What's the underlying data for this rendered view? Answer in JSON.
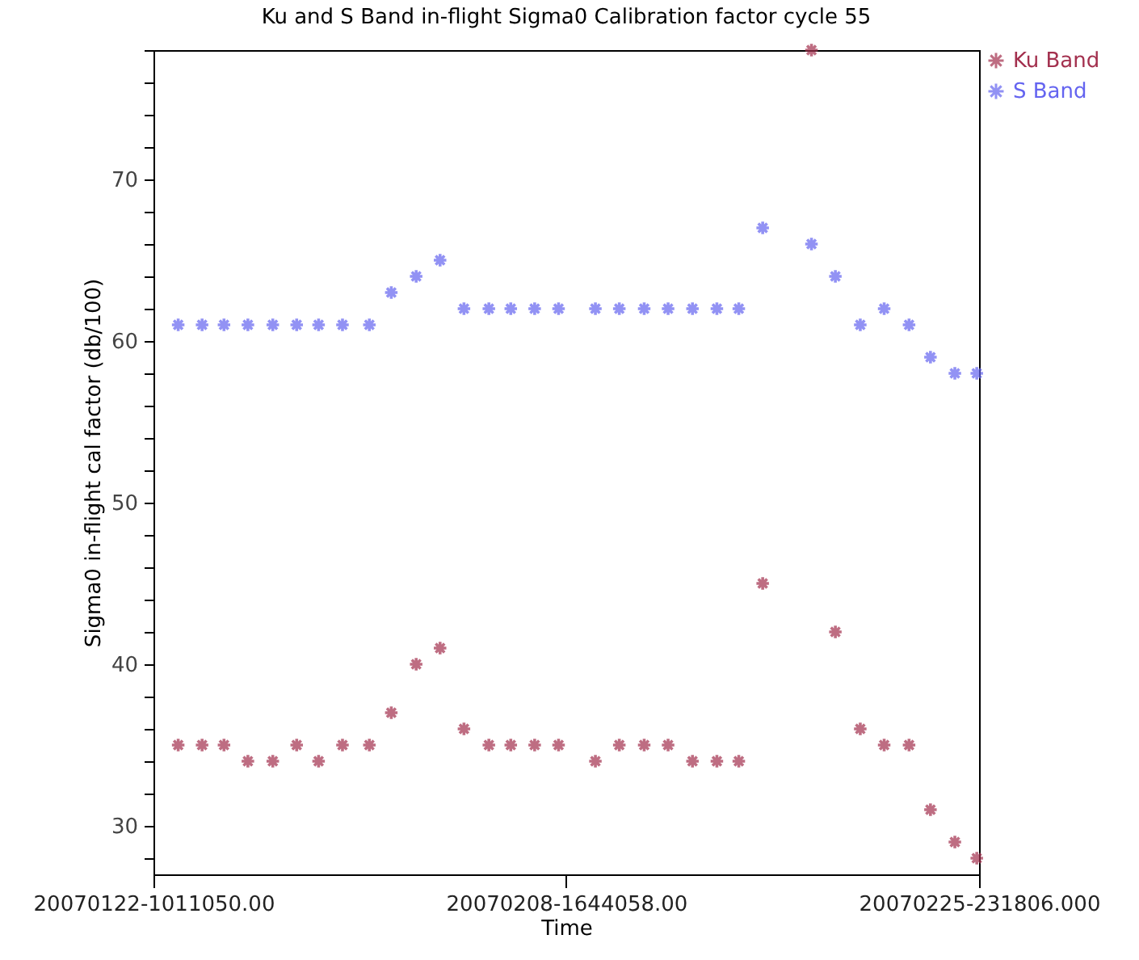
{
  "chart_data": {
    "type": "scatter",
    "title": "Ku and S Band in-flight Sigma0 Calibration factor cycle 55",
    "xlabel": "Time",
    "ylabel": "Sigma0 in-flight cal factor (db/100)",
    "x": [
      "2007-01-23T11:00",
      "2007-01-24T11:00",
      "2007-01-25T09:00",
      "2007-01-26T09:00",
      "2007-01-27T10:00",
      "2007-01-28T10:00",
      "2007-01-29T08:00",
      "2007-01-30T08:00",
      "2007-01-31T11:00",
      "2007-02-01T09:00",
      "2007-02-02T10:00",
      "2007-02-03T10:00",
      "2007-02-04T10:00",
      "2007-02-05T11:00",
      "2007-02-06T09:00",
      "2007-02-07T09:00",
      "2007-02-08T09:00",
      "2007-02-09T22:00",
      "2007-02-10T22:00",
      "2007-02-11T23:00",
      "2007-02-12T23:00",
      "2007-02-13T23:30",
      "2007-02-15T00:00",
      "2007-02-15T22:00",
      "2007-02-16T22:00",
      "2007-02-18T23:00",
      "2007-02-19T23:00",
      "2007-02-21T00:00",
      "2007-02-22T00:00",
      "2007-02-23T01:00",
      "2007-02-23T22:30",
      "2007-02-24T23:00",
      "2007-02-25T21:00"
    ],
    "series": [
      {
        "name": "Ku Band",
        "color": "#a3304e",
        "values": [
          35,
          35,
          35,
          34,
          34,
          35,
          34,
          35,
          35,
          37,
          40,
          41,
          36,
          35,
          35,
          35,
          35,
          34,
          35,
          35,
          35,
          34,
          34,
          34,
          45,
          78,
          42,
          36,
          35,
          35,
          31,
          29,
          28
        ]
      },
      {
        "name": "S Band",
        "color": "#6464f0",
        "values": [
          61,
          61,
          61,
          61,
          61,
          61,
          61,
          61,
          61,
          63,
          64,
          65,
          62,
          62,
          62,
          62,
          62,
          62,
          62,
          62,
          62,
          62,
          62,
          62,
          67,
          66,
          64,
          61,
          62,
          61,
          59,
          58,
          58
        ]
      }
    ],
    "xlim": [
      "2007-01-22T10:11",
      "2007-02-25T23:18"
    ],
    "xticks": [
      {
        "value": "2007-01-22T10:11",
        "label": "20070122-1011050.00"
      },
      {
        "value": "2007-02-08T16:44",
        "label": "20070208-1644058.00"
      },
      {
        "value": "2007-02-25T23:18",
        "label": "20070225-231806.000"
      }
    ],
    "ylim": [
      27,
      78
    ],
    "yticks": [
      {
        "value": 28,
        "label": null
      },
      30,
      {
        "value": 32,
        "label": null
      },
      {
        "value": 34,
        "label": null
      },
      {
        "value": 36,
        "label": null
      },
      {
        "value": 38,
        "label": null
      },
      40,
      {
        "value": 42,
        "label": null
      },
      {
        "value": 44,
        "label": null
      },
      {
        "value": 46,
        "label": null
      },
      {
        "value": 48,
        "label": null
      },
      50,
      {
        "value": 52,
        "label": null
      },
      {
        "value": 54,
        "label": null
      },
      {
        "value": 56,
        "label": null
      },
      {
        "value": 58,
        "label": null
      },
      60,
      {
        "value": 62,
        "label": null
      },
      {
        "value": 64,
        "label": null
      },
      {
        "value": 66,
        "label": null
      },
      {
        "value": 68,
        "label": null
      },
      70,
      {
        "value": 72,
        "label": null
      },
      {
        "value": 74,
        "label": null
      },
      {
        "value": 76,
        "label": null
      },
      {
        "value": 78,
        "label": null
      }
    ],
    "marker": "cross",
    "legend": "top right",
    "grid": false
  }
}
